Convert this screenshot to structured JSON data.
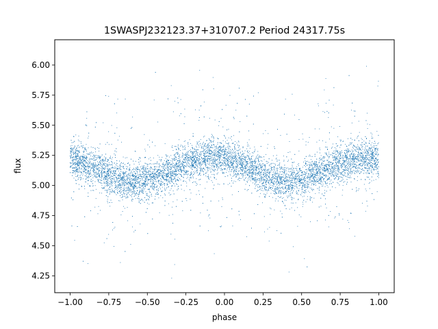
{
  "chart_data": {
    "type": "scatter",
    "title": "1SWASPJ232123.37+310707.2 Period 24317.75s",
    "xlabel": "phase",
    "ylabel": "flux",
    "xlim": [
      -1.1,
      1.1
    ],
    "ylim": [
      4.11,
      6.21
    ],
    "xticks": [
      -1.0,
      -0.75,
      -0.5,
      -0.25,
      0.0,
      0.25,
      0.5,
      0.75,
      1.0
    ],
    "xtick_labels": [
      "−1.00",
      "−0.75",
      "−0.50",
      "−0.25",
      "0.00",
      "0.25",
      "0.50",
      "0.75",
      "1.00"
    ],
    "yticks": [
      4.25,
      4.5,
      4.75,
      5.0,
      5.25,
      5.5,
      5.75,
      6.0
    ],
    "ytick_labels": [
      "4.25",
      "4.50",
      "4.75",
      "5.00",
      "5.25",
      "5.50",
      "5.75",
      "6.00"
    ],
    "point_color": "#1f77b4",
    "grid": false,
    "legend": "none",
    "series": [
      {
        "description": "folded light curve, sinusoidal with two cycles over phase -1 to 1",
        "x": [
          -1.0,
          -0.9,
          -0.8,
          -0.7,
          -0.6,
          -0.5,
          -0.4,
          -0.3,
          -0.2,
          -0.1,
          0.0,
          0.1,
          0.2,
          0.3,
          0.4,
          0.5,
          0.6,
          0.7,
          0.8,
          0.9,
          1.0
        ],
        "y": [
          5.22,
          5.18,
          5.12,
          5.06,
          5.03,
          5.04,
          5.09,
          5.15,
          5.2,
          5.24,
          5.22,
          5.18,
          5.12,
          5.06,
          5.03,
          5.04,
          5.09,
          5.15,
          5.2,
          5.24,
          5.22
        ]
      }
    ]
  }
}
